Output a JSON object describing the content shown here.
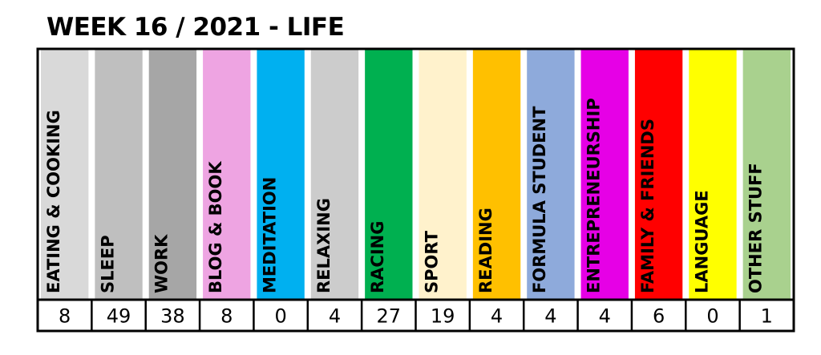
{
  "title": "WEEK 16 / 2021 - LIFE",
  "chart_data": {
    "type": "table",
    "title": "WEEK 16 / 2021 - LIFE",
    "categories": [
      "EATING & COOKING",
      "SLEEP",
      "WORK",
      "BLOG & BOOK",
      "MEDITATION",
      "RELAXING",
      "RACING",
      "SPORT",
      "READING",
      "FORMULA STUDENT",
      "ENTREPRENEURSHIP",
      "FAMILY & FRIENDS",
      "LANGUAGE",
      "OTHER STUFF"
    ],
    "values": [
      8,
      49,
      38,
      8,
      0,
      4,
      27,
      19,
      4,
      4,
      4,
      6,
      0,
      1
    ],
    "colors": [
      "#d9d9d9",
      "#bfbfbf",
      "#a6a6a6",
      "#eea4e2",
      "#00b0f0",
      "#cccccc",
      "#00b050",
      "#fff2cc",
      "#ffc000",
      "#8eaadb",
      "#e600e6",
      "#ff0000",
      "#ffff00",
      "#a9d18e"
    ]
  }
}
